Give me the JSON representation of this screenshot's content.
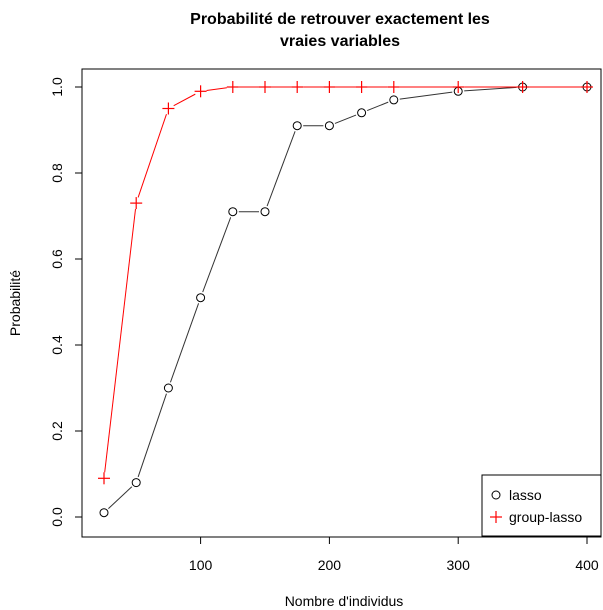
{
  "chart_data": {
    "type": "line",
    "title_line1": "Probabilité de retrouver exactement les",
    "title_line2": "vraies variables",
    "xlabel": "Nombre d'individus",
    "ylabel": "Probabilité",
    "xlim": [
      25,
      400
    ],
    "ylim": [
      0,
      1
    ],
    "xticks": [
      100,
      200,
      300,
      400
    ],
    "yticks": [
      0.0,
      0.2,
      0.4,
      0.6,
      0.8,
      1.0
    ],
    "xtick_labels": [
      "100",
      "200",
      "300",
      "400"
    ],
    "ytick_labels": [
      "0.0",
      "0.2",
      "0.4",
      "0.6",
      "0.8",
      "1.0"
    ],
    "legend_position": "bottom-right",
    "series": [
      {
        "name": "lasso",
        "marker": "circle",
        "color": "#000000",
        "line_color": "#333333",
        "x": [
          25,
          50,
          75,
          100,
          125,
          150,
          175,
          200,
          225,
          250,
          300,
          350,
          400
        ],
        "y": [
          0.01,
          0.08,
          0.3,
          0.51,
          0.71,
          0.71,
          0.91,
          0.91,
          0.94,
          0.97,
          0.99,
          1.0,
          1.0
        ]
      },
      {
        "name": "group-lasso",
        "marker": "plus",
        "color": "#ff0000",
        "line_color": "#ff0000",
        "x": [
          25,
          50,
          75,
          100,
          125,
          150,
          175,
          200,
          225,
          250,
          300,
          350,
          400
        ],
        "y": [
          0.09,
          0.73,
          0.95,
          0.99,
          1.0,
          1.0,
          1.0,
          1.0,
          1.0,
          1.0,
          1.0,
          1.0,
          1.0
        ]
      }
    ]
  }
}
